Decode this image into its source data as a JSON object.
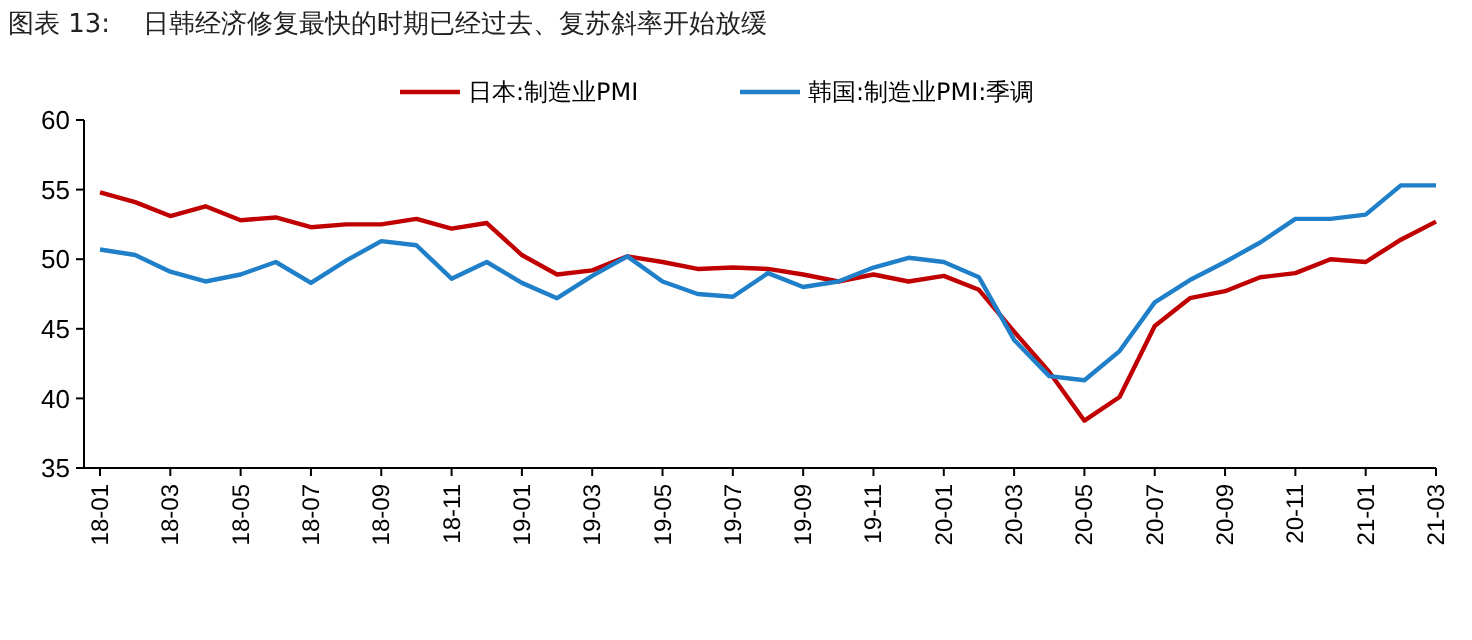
{
  "chart_data": {
    "type": "line",
    "title": "图表 13:    日韩经济修复最快的时期已经过去、复苏斜率开始放缓",
    "categories": [
      "18-01",
      null,
      "18-03",
      null,
      "18-05",
      null,
      "18-07",
      null,
      "18-09",
      null,
      "18-11",
      null,
      "19-01",
      null,
      "19-03",
      null,
      "19-05",
      null,
      "19-07",
      null,
      "19-09",
      null,
      "19-11",
      null,
      "20-01",
      null,
      "20-03",
      null,
      "20-05",
      null,
      "20-07",
      null,
      "20-09",
      null,
      "20-11",
      null,
      "21-01",
      null,
      "21-03"
    ],
    "series": [
      {
        "name": "日本:制造业PMI",
        "color": "#c00000",
        "values": [
          54.8,
          54.1,
          53.1,
          53.8,
          52.8,
          53.0,
          52.3,
          52.5,
          52.5,
          52.9,
          52.2,
          52.6,
          50.3,
          48.9,
          49.2,
          50.2,
          49.8,
          49.3,
          49.4,
          49.3,
          48.9,
          48.4,
          48.9,
          48.4,
          48.8,
          47.8,
          44.8,
          41.9,
          38.4,
          40.1,
          45.2,
          47.2,
          47.7,
          48.7,
          49.0,
          50.0,
          49.8,
          51.4,
          52.7
        ]
      },
      {
        "name": "韩国:制造业PMI:季调",
        "color": "#1f7fc8",
        "values": [
          50.7,
          50.3,
          49.1,
          48.4,
          48.9,
          49.8,
          48.3,
          49.9,
          51.3,
          51.0,
          48.6,
          49.8,
          48.3,
          47.2,
          48.8,
          50.2,
          48.4,
          47.5,
          47.3,
          49.0,
          48.0,
          48.4,
          49.4,
          50.1,
          49.8,
          48.7,
          44.2,
          41.6,
          41.3,
          43.4,
          46.9,
          48.5,
          49.8,
          51.2,
          52.9,
          52.9,
          53.2,
          55.3,
          55.3
        ]
      }
    ],
    "ylim": [
      35,
      60
    ],
    "yticks": [
      35,
      40,
      45,
      50,
      55,
      60
    ],
    "legend": "top",
    "grid": false,
    "line_style": "solid"
  }
}
